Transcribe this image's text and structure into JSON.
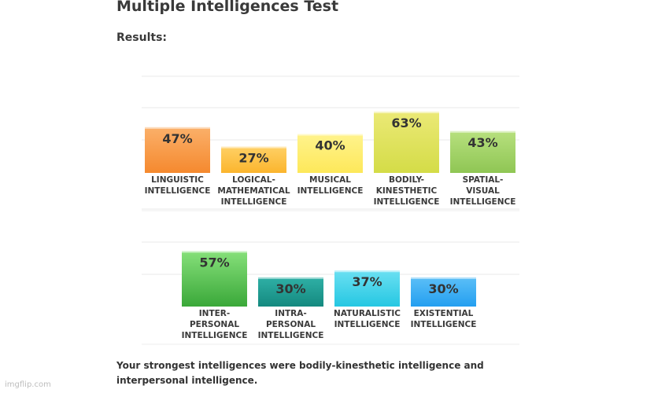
{
  "header": {
    "title": "Multiple Intelligences Test",
    "results_label": "Results:"
  },
  "chart_data": [
    {
      "type": "bar",
      "ylim": [
        0,
        100
      ],
      "grid": true,
      "categories": [
        [
          "LINGUISTIC",
          "INTELLIGENCE"
        ],
        [
          "LOGICAL-",
          "MATHEMATICAL",
          "INTELLIGENCE"
        ],
        [
          "MUSICAL",
          "INTELLIGENCE"
        ],
        [
          "BODILY-",
          "KINESTHETIC",
          "INTELLIGENCE"
        ],
        [
          "SPATIAL-",
          "VISUAL",
          "INTELLIGENCE"
        ]
      ],
      "values": [
        47,
        27,
        40,
        63,
        43
      ],
      "value_labels": [
        "47%",
        "27%",
        "40%",
        "63%",
        "43%"
      ],
      "colors": [
        [
          "#fbb06a",
          "#f5892e"
        ],
        [
          "#ffd065",
          "#fbb52d"
        ],
        [
          "#fff38c",
          "#fde85a"
        ],
        [
          "#ebe976",
          "#d4dc47"
        ],
        [
          "#b7e07e",
          "#8fc654"
        ]
      ]
    },
    {
      "type": "bar",
      "ylim": [
        0,
        100
      ],
      "grid": true,
      "categories": [
        [
          "INTER-",
          "PERSONAL",
          "INTELLIGENCE"
        ],
        [
          "INTRA-",
          "PERSONAL",
          "INTELLIGENCE"
        ],
        [
          "NATURALISTIC",
          "INTELLIGENCE"
        ],
        [
          "EXISTENTIAL",
          "INTELLIGENCE"
        ]
      ],
      "values": [
        57,
        30,
        37,
        30
      ],
      "value_labels": [
        "57%",
        "30%",
        "37%",
        "30%"
      ],
      "colors": [
        [
          "#86e07a",
          "#3aa839"
        ],
        [
          "#2fb0a6",
          "#14897f"
        ],
        [
          "#6be0f2",
          "#25c7e2"
        ],
        [
          "#5bbff7",
          "#249ff0"
        ]
      ]
    }
  ],
  "footer": {
    "conclusion": "Your strongest intelligences were bodily-kinesthetic intelligence and interpersonal intelligence.",
    "watermark": "imgflip.com"
  }
}
